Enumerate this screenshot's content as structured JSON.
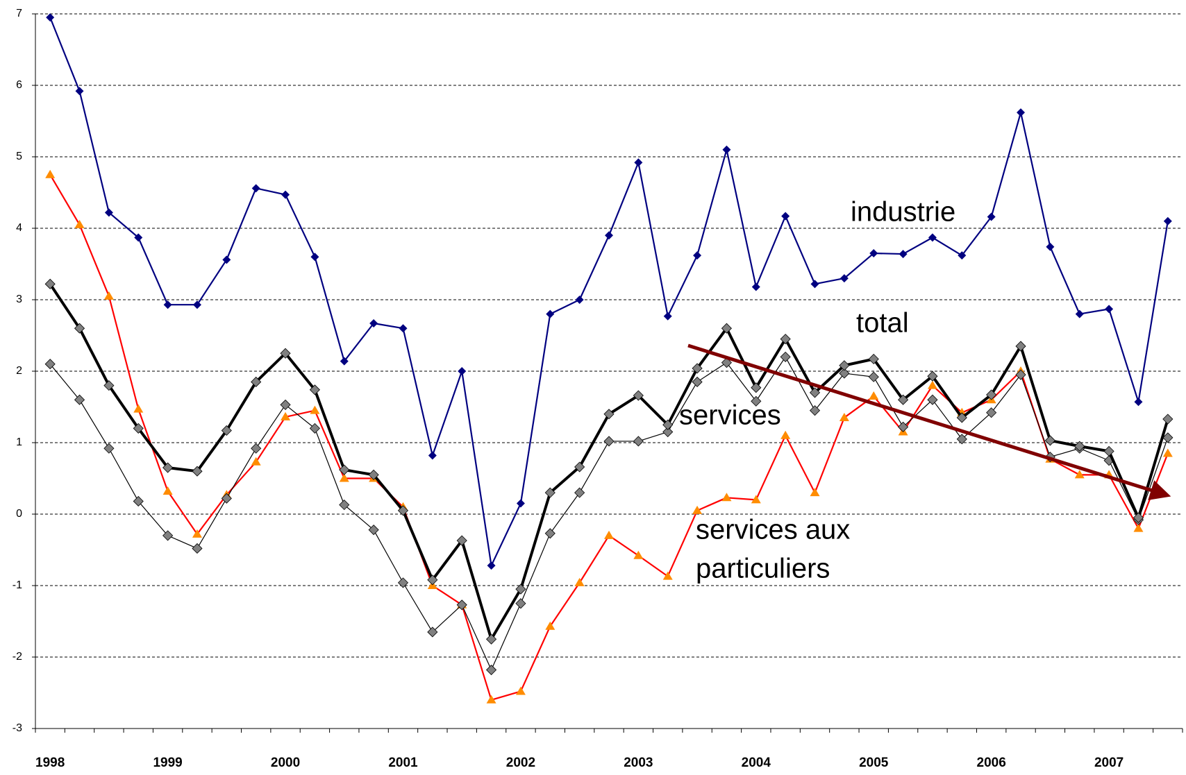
{
  "chart_data": {
    "type": "line",
    "categories": [
      "1998",
      null,
      null,
      null,
      "1999",
      null,
      null,
      null,
      "2000",
      null,
      null,
      null,
      "2001",
      null,
      null,
      null,
      "2002",
      null,
      null,
      null,
      "2003",
      null,
      null,
      null,
      "2004",
      null,
      null,
      null,
      "2005",
      null,
      null,
      null,
      "2006",
      null,
      null,
      null,
      "2007",
      null,
      null
    ],
    "ylim": [
      -3,
      7
    ],
    "yticks": [
      -3,
      -2,
      -1,
      0,
      1,
      2,
      3,
      4,
      5,
      6,
      7
    ],
    "grid": true,
    "series": [
      {
        "name": "industrie",
        "color": "#000080",
        "marker": "diamond",
        "marker_color": "#000080",
        "values": [
          6.95,
          5.92,
          4.22,
          3.87,
          2.93,
          2.93,
          3.56,
          4.56,
          4.47,
          3.6,
          2.14,
          2.67,
          2.6,
          0.82,
          2.0,
          -0.72,
          0.15,
          2.8,
          3.0,
          3.9,
          4.92,
          2.77,
          3.62,
          5.1,
          3.18,
          4.17,
          3.22,
          3.3,
          3.65,
          3.64,
          3.87,
          3.62,
          4.16,
          5.62,
          3.74,
          2.8,
          2.87,
          1.57,
          4.1
        ]
      },
      {
        "name": "services aux particuliers",
        "color": "#ff0000",
        "marker": "triangle",
        "marker_color": "#ff8c00",
        "values": [
          4.75,
          4.05,
          3.05,
          1.47,
          0.32,
          -0.28,
          0.27,
          0.73,
          1.36,
          1.45,
          0.5,
          0.5,
          0.1,
          -1.0,
          -1.27,
          -2.6,
          -2.48,
          -1.57,
          -0.96,
          -0.3,
          -0.58,
          -0.87,
          0.05,
          0.23,
          0.2,
          1.1,
          0.3,
          1.35,
          1.65,
          1.15,
          1.8,
          1.42,
          1.6,
          2.0,
          0.77,
          0.55,
          0.55,
          -0.2,
          0.85
        ]
      },
      {
        "name": "services",
        "color": "#000000",
        "marker": "diamond",
        "marker_color": "#808080",
        "values": [
          2.1,
          1.6,
          0.92,
          0.18,
          -0.3,
          -0.48,
          0.22,
          0.92,
          1.53,
          1.2,
          0.13,
          -0.22,
          -0.96,
          -1.65,
          -1.27,
          -2.18,
          -1.25,
          -0.27,
          0.3,
          1.02,
          1.02,
          1.15,
          1.85,
          2.12,
          1.58,
          2.2,
          1.45,
          1.97,
          1.92,
          1.22,
          1.6,
          1.05,
          1.42,
          1.95,
          0.8,
          0.92,
          0.75,
          -0.08,
          1.07
        ]
      },
      {
        "name": "total",
        "color": "#000000",
        "marker": "diamond",
        "marker_color": "#808080",
        "values": [
          3.22,
          2.6,
          1.8,
          1.2,
          0.65,
          0.6,
          1.17,
          1.85,
          2.25,
          1.74,
          0.62,
          0.55,
          0.05,
          -0.92,
          -0.37,
          -1.75,
          -1.05,
          0.3,
          0.66,
          1.4,
          1.66,
          1.25,
          2.04,
          2.6,
          1.77,
          2.45,
          1.7,
          2.08,
          2.17,
          1.6,
          1.93,
          1.35,
          1.67,
          2.35,
          1.03,
          0.95,
          0.88,
          -0.05,
          1.33
        ]
      }
    ],
    "annotations": [
      [
        "industrie"
      ],
      [
        "total"
      ],
      [
        "services"
      ],
      [
        "services aux",
        "particuliers"
      ]
    ]
  }
}
